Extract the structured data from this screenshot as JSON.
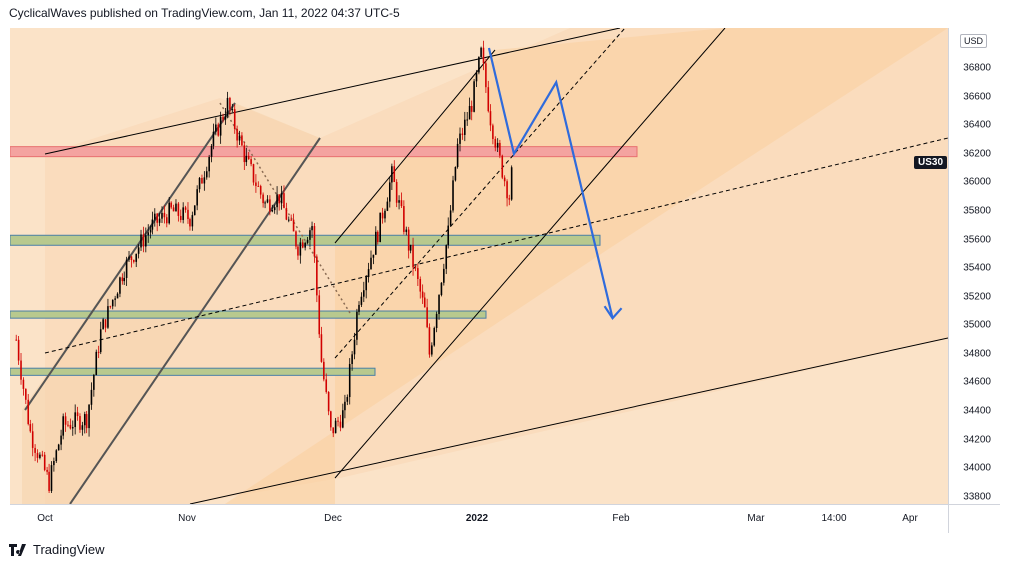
{
  "header": {
    "publish_text": "CyclicalWaves published on TradingView.com, Jan 11, 2022 04:37 UTC-5"
  },
  "footer": {
    "brand": "TradingView"
  },
  "price_scale": {
    "currency": "USD",
    "symbol": "US30"
  },
  "colors": {
    "candle_up": "#000000",
    "candle_down": "#d10000",
    "projection": "#2f6bdc",
    "resistance_zone": "#f4a3a0",
    "support_zone": "#b8c98e",
    "channel_fill": "#f9cf9f",
    "background": "#fbe3c8"
  },
  "chart_data": {
    "type": "candlestick",
    "ylim": [
      33750,
      37080
    ],
    "x_axis_labels": [
      "Oct",
      "Nov",
      "Dec",
      "2022",
      "Feb",
      "Mar",
      "14:00",
      "Apr"
    ],
    "y_tick_labels": [
      33800,
      34000,
      34200,
      34400,
      34600,
      34800,
      35000,
      35200,
      35400,
      35600,
      35800,
      36000,
      36200,
      36400,
      36600,
      36800
    ],
    "price_path": [
      [
        "Sep 27",
        34900
      ],
      [
        "Sep 30",
        34250
      ],
      [
        "Oct 4",
        33900
      ],
      [
        "Oct 7",
        34300
      ],
      [
        "Oct 12",
        34350
      ],
      [
        "Oct 15",
        34950
      ],
      [
        "Oct 20",
        35400
      ],
      [
        "Oct 26",
        35700
      ],
      [
        "Oct 30",
        35800
      ],
      [
        "Nov 3",
        35750
      ],
      [
        "Nov 8",
        36300
      ],
      [
        "Nov 11",
        36550
      ],
      [
        "Nov 15",
        36150
      ],
      [
        "Nov 19",
        35850
      ],
      [
        "Nov 22",
        35900
      ],
      [
        "Nov 26",
        35550
      ],
      [
        "Nov 29",
        35700
      ],
      [
        "Dec 1",
        34750
      ],
      [
        "Dec 3",
        34250
      ],
      [
        "Dec 6",
        34400
      ],
      [
        "Dec 9",
        35200
      ],
      [
        "Dec 13",
        35650
      ],
      [
        "Dec 16",
        36050
      ],
      [
        "Dec 20",
        35500
      ],
      [
        "Dec 23",
        35100
      ],
      [
        "Dec 24",
        34800
      ],
      [
        "Dec 28",
        35650
      ],
      [
        "Dec 30",
        36250
      ],
      [
        "Jan 2",
        36550
      ],
      [
        "Jan 4",
        36900
      ],
      [
        "Jan 6",
        36450
      ],
      [
        "Jan 8",
        36150
      ],
      [
        "Jan 10",
        35900
      ],
      [
        "Jan 11",
        36200
      ]
    ],
    "zones": [
      {
        "kind": "resistance",
        "low": 36180,
        "high": 36250
      },
      {
        "kind": "support",
        "low": 35560,
        "high": 35630
      },
      {
        "kind": "support",
        "low": 35050,
        "high": 35100
      },
      {
        "kind": "support",
        "low": 34650,
        "high": 34700
      }
    ],
    "projection_path": [
      [
        "Jan 11",
        36200
      ],
      [
        "Jan 20",
        36700
      ],
      [
        "Feb 1",
        35050
      ]
    ]
  }
}
